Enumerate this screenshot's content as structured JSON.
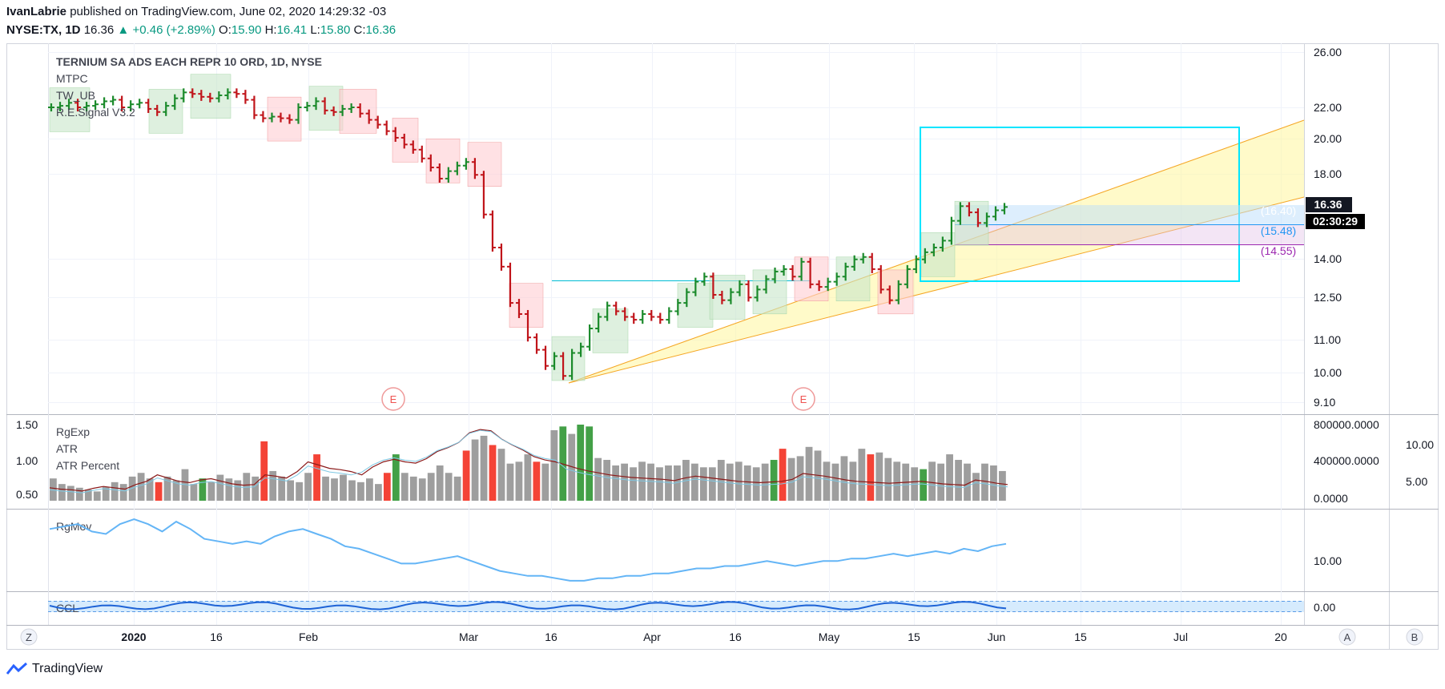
{
  "header": {
    "author": "IvanLabrie",
    "published": "published on TradingView.com, June 02, 2020 14:29:32 -03",
    "symbol": "NYSE:TX, 1D",
    "last": "16.36",
    "change": "+0.46 (+2.89%)",
    "o_label": "O:",
    "o": "15.90",
    "h_label": "H:",
    "h": "16.41",
    "l_label": "L:",
    "l": "15.80",
    "c_label": "C:",
    "c": "16.36"
  },
  "indicators": {
    "main": [
      "TERNIUM SA ADS EACH REPR 10 ORD, 1D, NYSE",
      "MTPC",
      "TW_UB",
      "R.E.Signal V3.2"
    ],
    "pane2": [
      "RgExp",
      "ATR",
      "ATR Percent"
    ],
    "pane3": [
      "RgMov"
    ],
    "pane4": [
      "CCL"
    ]
  },
  "price_badges": {
    "last_price": "16.36",
    "countdown": "02:30:29",
    "level_1": "(16.40)",
    "level_2": "(15.48)",
    "level_3": "(14.55)"
  },
  "earnings_marker": "E",
  "bottom_buttons": {
    "left": "Z",
    "auto": "A",
    "log": "B"
  },
  "brand": "TradingView",
  "chart_data": {
    "type": "ohlc",
    "price_axis_ticks": [
      "26.00",
      "22.00",
      "20.00",
      "18.00",
      "14.00",
      "12.50",
      "11.00",
      "10.00",
      "9.10"
    ],
    "pane2_left_ticks": [
      "1.50",
      "1.00",
      "0.50"
    ],
    "pane2_right_ticks": [
      "800000.0000",
      "400000.0000",
      "0.0000"
    ],
    "pane2_far_right_ticks": [
      "10.00",
      "5.00"
    ],
    "pane3_ticks": [
      "10.00"
    ],
    "pane4_ticks": [
      "0.00"
    ],
    "time_axis_ticks": [
      "2020",
      "16",
      "Feb",
      "Mar",
      "16",
      "Apr",
      "16",
      "May",
      "15",
      "Jun",
      "15",
      "Jul",
      "20"
    ],
    "price_y": [
      22.0,
      22.1,
      22.3,
      22.0,
      22.1,
      22.2,
      22.4,
      22.5,
      22.0,
      22.2,
      22.3,
      21.9,
      21.7,
      22.1,
      22.6,
      23.0,
      22.9,
      22.7,
      22.6,
      22.8,
      23.0,
      22.9,
      22.5,
      21.5,
      21.3,
      21.4,
      21.3,
      21.2,
      22.0,
      22.1,
      22.4,
      21.8,
      21.7,
      21.9,
      22.0,
      21.6,
      21.2,
      20.9,
      20.5,
      20.1,
      19.7,
      19.4,
      18.9,
      18.4,
      17.8,
      18.2,
      18.5,
      18.7,
      18.0,
      16.0,
      14.5,
      13.7,
      12.3,
      11.9,
      11.1,
      10.7,
      10.2,
      10.5,
      9.9,
      10.6,
      10.8,
      11.4,
      11.8,
      12.2,
      12.0,
      11.8,
      11.7,
      11.9,
      11.8,
      11.7,
      12.0,
      12.3,
      12.7,
      13.1,
      13.3,
      12.6,
      12.4,
      12.7,
      13.0,
      12.5,
      12.8,
      13.2,
      13.5,
      13.6,
      13.3,
      13.9,
      13.0,
      12.9,
      13.1,
      13.3,
      13.7,
      14.0,
      14.1,
      13.6,
      12.8,
      12.4,
      13.0,
      13.6,
      14.0,
      14.3,
      14.5,
      14.8,
      15.7,
      16.4,
      16.1,
      15.6,
      15.9,
      16.2,
      16.36
    ],
    "volume_bars_k": [
      240,
      180,
      160,
      140,
      120,
      100,
      150,
      200,
      180,
      260,
      300,
      240,
      200,
      260,
      220,
      340,
      180,
      240,
      200,
      280,
      240,
      220,
      300,
      260,
      640,
      320,
      260,
      220,
      200,
      300,
      500,
      260,
      240,
      280,
      220,
      200,
      240,
      180,
      300,
      500,
      300,
      260,
      240,
      300,
      380,
      300,
      260,
      540,
      660,
      700,
      600,
      560,
      400,
      420,
      500,
      420,
      400,
      760,
      800,
      720,
      820,
      800,
      460,
      440,
      380,
      400,
      360,
      420,
      400,
      360,
      380,
      380,
      440,
      400,
      360,
      360,
      440,
      400,
      420,
      380,
      360,
      400,
      440,
      560,
      460,
      480,
      580,
      540,
      420,
      400,
      480,
      420,
      560,
      500,
      520,
      460,
      420,
      400,
      360,
      340,
      420,
      400,
      500,
      440,
      400,
      300,
      400,
      380,
      320
    ],
    "atr_percent": [
      4.0,
      3.8,
      3.7,
      3.5,
      3.9,
      4.2,
      4.0,
      3.8,
      4.5,
      5.0,
      6.0,
      5.5,
      5.0,
      4.8,
      5.2,
      5.4,
      5.0,
      4.6,
      4.4,
      4.5,
      6.0,
      5.8,
      5.5,
      6.5,
      8.0,
      7.5,
      7.0,
      6.8,
      6.5,
      6.0,
      7.2,
      8.0,
      8.4,
      8.0,
      7.8,
      8.5,
      9.6,
      10.2,
      11.0,
      12.5,
      13.0,
      12.8,
      11.5,
      10.6,
      9.8,
      8.8,
      8.3,
      8.0,
      7.5,
      7.0,
      6.6,
      6.3,
      6.0,
      5.8,
      5.6,
      5.5,
      5.4,
      5.3,
      5.1,
      5.5,
      5.8,
      5.6,
      5.4,
      5.2,
      5.0,
      4.9,
      4.8,
      4.9,
      5.0,
      5.3,
      6.2,
      6.0,
      5.8,
      5.5,
      5.2,
      5.0,
      4.9,
      4.8,
      4.7,
      4.8,
      4.9,
      5.0,
      4.8,
      4.6,
      4.5,
      4.4,
      5.2,
      5.0,
      4.7,
      4.5
    ],
    "rgmov": [
      22,
      23,
      24,
      21,
      20,
      24,
      26,
      24,
      21,
      25,
      22,
      18,
      17,
      16,
      17,
      16,
      19,
      21,
      22,
      20,
      18,
      15,
      14,
      12,
      10,
      8,
      8,
      9,
      10,
      11,
      9,
      7,
      5,
      4,
      3,
      3,
      2,
      1,
      1,
      2,
      2,
      3,
      3,
      4,
      4,
      5,
      6,
      6,
      7,
      7,
      8,
      9,
      8,
      7,
      8,
      9,
      9,
      10,
      10,
      11,
      12,
      11,
      12,
      13,
      12,
      14,
      13,
      15,
      16
    ]
  }
}
